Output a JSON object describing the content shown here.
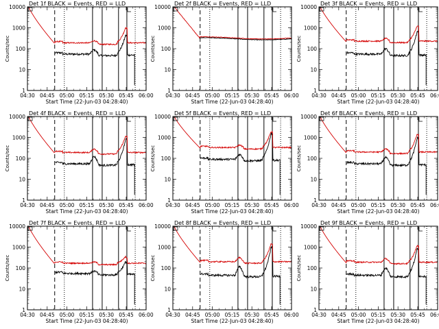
{
  "chart_data": {
    "type": "line",
    "layout": "3x3 grid",
    "series_style": {
      "black_color": "#000000",
      "red_color": "#d40000"
    },
    "panels": [
      {
        "id": "det1",
        "title": "Det 1f BLACK = Events, RED = LLD",
        "red_level": 190,
        "black_level": 55,
        "bump": 1.6,
        "peak": 9.0,
        "red_peak": 6.0
      },
      {
        "id": "det2",
        "title": "Det 2f BLACK = Events, RED = LLD",
        "red_level": 330,
        "black_level": 300,
        "bump": 1.05,
        "peak": 1.15,
        "red_peak": 1.15,
        "flat": true
      },
      {
        "id": "det3",
        "title": "Det 3f BLACK = Events, RED = LLD",
        "red_level": 230,
        "black_level": 55,
        "bump": 1.8,
        "peak": 14.0,
        "red_peak": 6.0
      },
      {
        "id": "det4",
        "title": "Det 4f BLACK = Events, RED = LLD",
        "red_level": 190,
        "black_level": 55,
        "bump": 2.2,
        "peak": 17.0,
        "red_peak": 7.0
      },
      {
        "id": "det5",
        "title": "Det 5f BLACK = Events, RED = LLD",
        "red_level": 330,
        "black_level": 90,
        "bump": 1.7,
        "peak": 20.0,
        "red_peak": 6.5
      },
      {
        "id": "det6",
        "title": "Det 6f BLACK = Events, RED = LLD",
        "red_level": 200,
        "black_level": 55,
        "bump": 2.0,
        "peak": 20.0,
        "red_peak": 8.0
      },
      {
        "id": "det7",
        "title": "Det 7f BLACK = Events, RED = LLD",
        "red_level": 170,
        "black_level": 55,
        "bump": 1.3,
        "peak": 4.0,
        "red_peak": 2.2
      },
      {
        "id": "det8",
        "title": "Det 8f BLACK = Events, RED = LLD",
        "red_level": 200,
        "black_level": 45,
        "bump": 2.5,
        "peak": 25.0,
        "red_peak": 8.0
      },
      {
        "id": "det9",
        "title": "Det 9f BLACK = Events, RED = LLD",
        "red_level": 190,
        "black_level": 45,
        "bump": 2.2,
        "peak": 22.0,
        "red_peak": 7.0
      }
    ],
    "xlabel": "Start Time (22-Jun-03 04:28:40)",
    "ylabel": "Counts/sec",
    "x_ticks": [
      "04:30",
      "04:45",
      "05:00",
      "05:15",
      "05:30",
      "05:45",
      "06:00"
    ],
    "y_ticks": [
      "1",
      "10",
      "100",
      "1000",
      "10000"
    ],
    "y_scale": "log",
    "ylim": [
      1,
      10000
    ],
    "xlim_minutes_after_04_30": [
      0,
      37
    ],
    "marker_lines": {
      "dashed": [
        8.5
      ],
      "dotted": [
        11.5,
        33.6
      ],
      "solid": [
        20.3,
        23.3,
        28.4,
        31.0
      ]
    }
  }
}
